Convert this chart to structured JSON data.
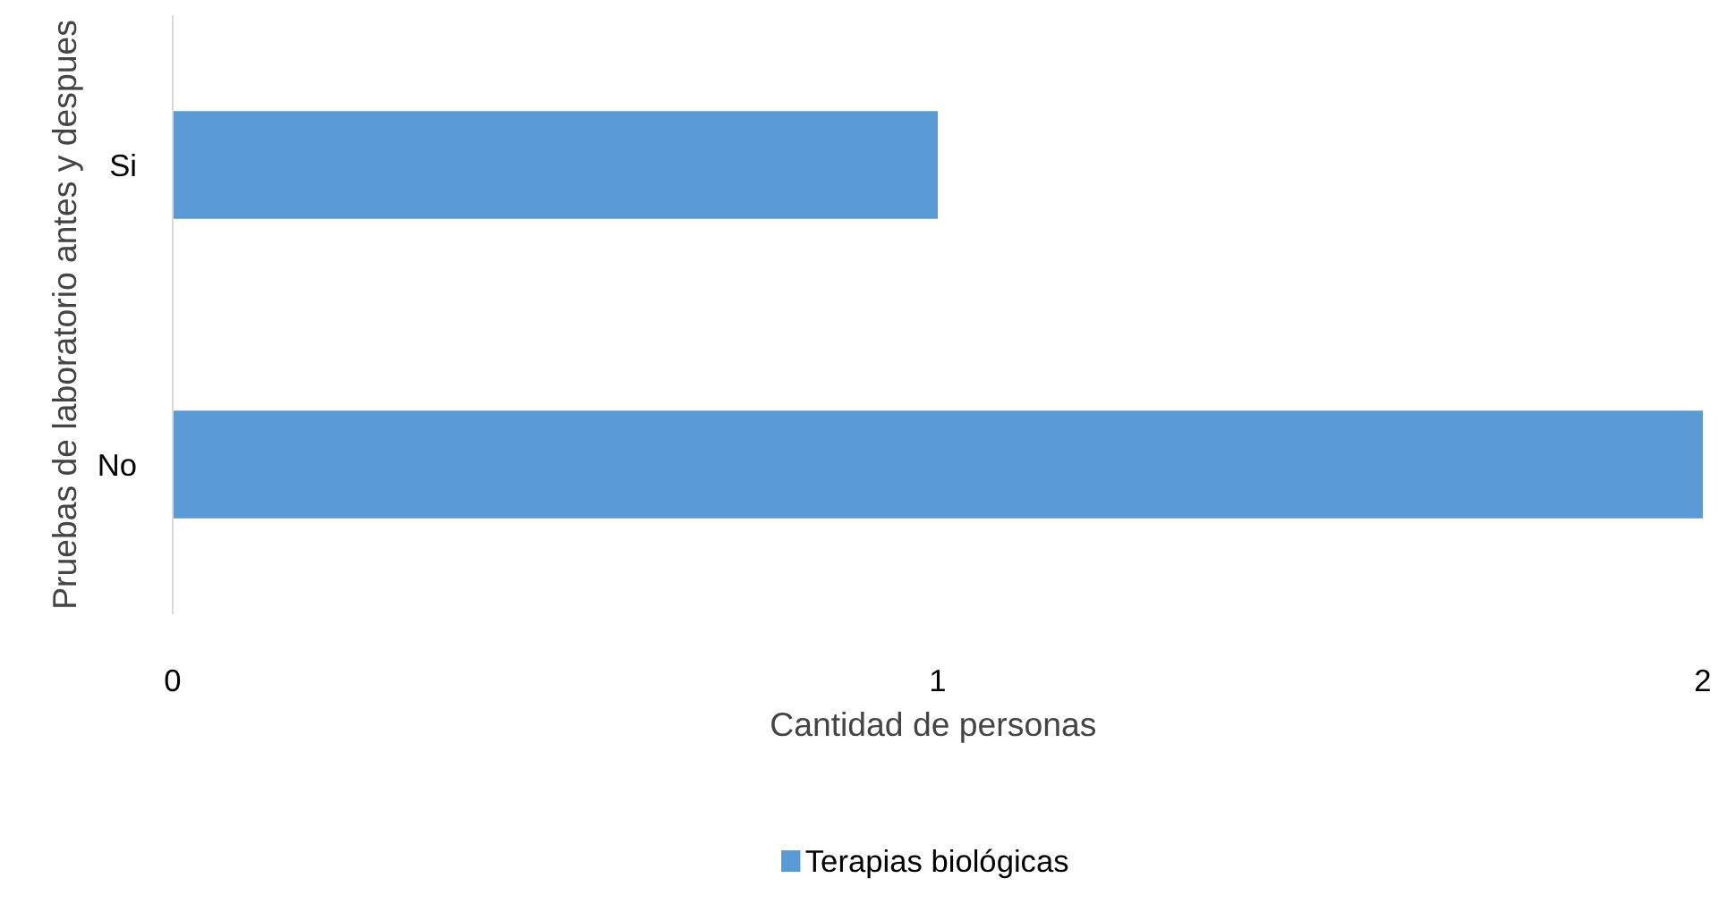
{
  "chart_data": {
    "type": "bar",
    "orientation": "horizontal",
    "categories": [
      "Si",
      "No"
    ],
    "series": [
      {
        "name": "Terapias biológicas",
        "color": "#5b9bd5",
        "values": [
          1,
          2
        ]
      }
    ],
    "xlabel": "Cantidad  de personas",
    "ylabel": "Pruebas de laboratorio antes y despues",
    "xlim": [
      0,
      2
    ],
    "xticks": [
      0,
      1,
      2
    ],
    "grid": false,
    "legend": "bottom"
  }
}
